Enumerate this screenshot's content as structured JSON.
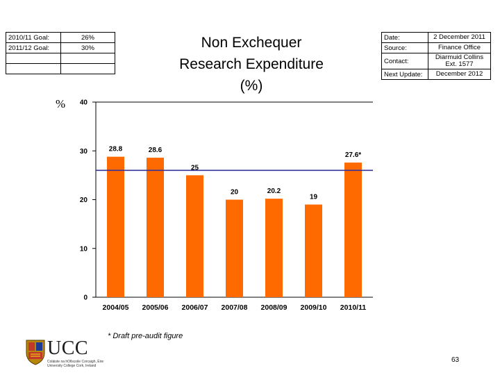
{
  "goals": {
    "rows": [
      {
        "label": "2010/11 Goal:",
        "value": "26%"
      },
      {
        "label": "2011/12 Goal:",
        "value": "30%"
      },
      {
        "label": "",
        "value": ""
      },
      {
        "label": "",
        "value": ""
      }
    ]
  },
  "title_lines": [
    "Non Exchequer",
    "Research Expenditure",
    "(%)"
  ],
  "meta": {
    "rows": [
      {
        "label": "Date:",
        "value": "2 December 2011"
      },
      {
        "label": "Source:",
        "value": "Finance Office"
      },
      {
        "label": "Contact:",
        "value": "Diarmuid Collins Ext. 1577"
      },
      {
        "label": "Next Update:",
        "value": "December 2012"
      }
    ]
  },
  "chart_data": {
    "type": "bar",
    "title": "",
    "xlabel": "",
    "ylabel": "%",
    "categories": [
      "2004/05",
      "2005/06",
      "2006/07",
      "2007/08",
      "2008/09",
      "2009/10",
      "2010/11"
    ],
    "values": [
      28.8,
      28.6,
      25,
      20,
      20.2,
      19,
      27.6
    ],
    "data_labels": [
      "28.8",
      "28.6",
      "25",
      "20",
      "20.2",
      "19",
      "27.6*"
    ],
    "ylim": [
      0,
      40
    ],
    "yticks": [
      0,
      10,
      20,
      30,
      40
    ],
    "goal_line": 26,
    "grid": false,
    "colors": {
      "bar": "#ff6a00",
      "goal_line": "#333399",
      "background": "#ffffff"
    }
  },
  "footnote": "* Draft pre-audit figure",
  "logo": {
    "name": "UCC",
    "sub1": "Coláiste na hOllscoile Corcaigh, Éire",
    "sub2": "University College Cork, Ireland"
  },
  "page_number": "63"
}
